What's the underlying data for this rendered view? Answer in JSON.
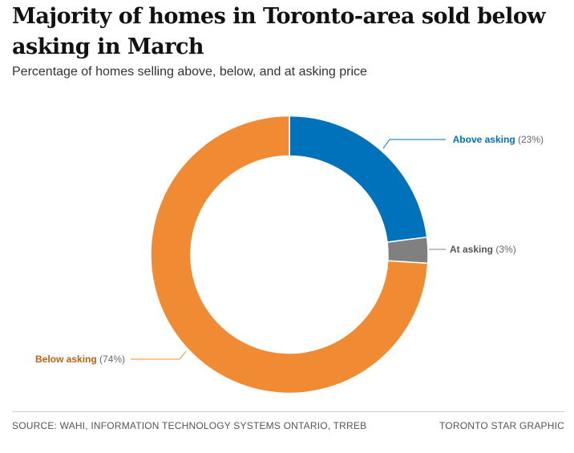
{
  "header": {
    "title": "Majority of homes in Toronto-area sold below asking in March",
    "subtitle": "Percentage of homes selling above, below, and at asking price"
  },
  "chart_data": {
    "type": "pie",
    "donut": true,
    "title": "Majority of homes in Toronto-area sold below asking in March",
    "subtitle": "Percentage of homes selling above, below, and at asking price",
    "unit": "%",
    "slices": [
      {
        "label": "Above asking",
        "value": 23,
        "value_label": "(23%)",
        "color": "#0072bb"
      },
      {
        "label": "At asking",
        "value": 3,
        "value_label": "(3%)",
        "color": "#808080"
      },
      {
        "label": "Below asking",
        "value": 74,
        "value_label": "(74%)",
        "color": "#f08b33"
      }
    ]
  },
  "footer": {
    "source": "SOURCE: WAHI, INFORMATION TECHNOLOGY SYSTEMS ONTARIO, TRREB",
    "credit": "TORONTO STAR GRAPHIC"
  }
}
